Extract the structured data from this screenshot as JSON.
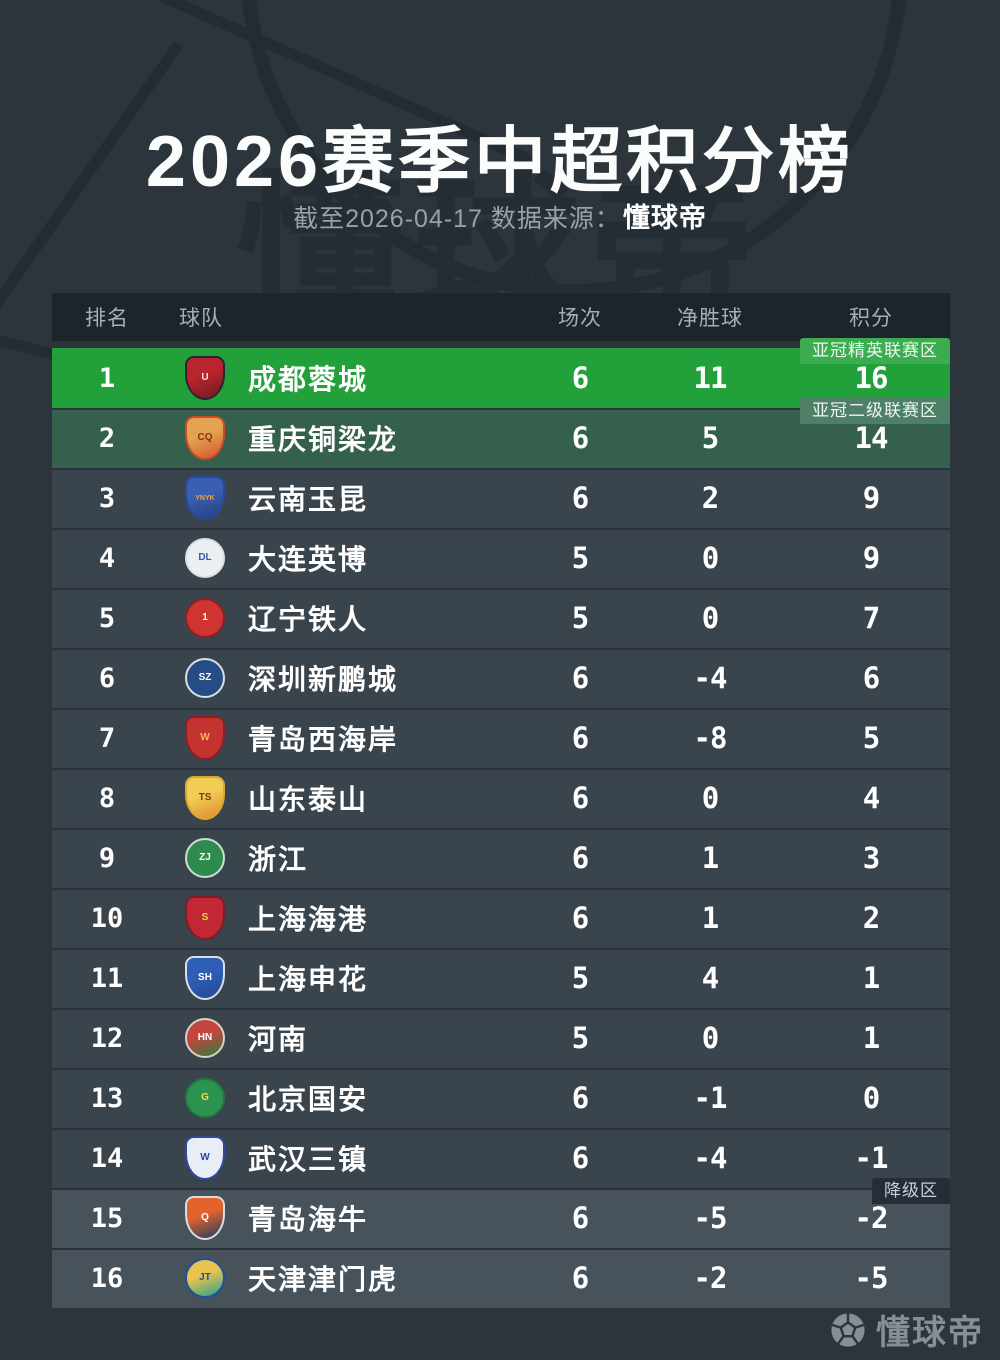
{
  "page": {
    "title": "2026赛季中超积分榜",
    "subtitle_prefix": "截至2026-04-17 数据来源：",
    "subtitle_brand": "懂球帝",
    "watermark": "懂球帝",
    "footer_brand": "懂球帝"
  },
  "colors": {
    "page_bg": "#2b353b",
    "header_bg": "#1c252b",
    "row_default": "#3a444d",
    "row_acl_elite": "#22a13a",
    "row_acl_two": "#35604b",
    "row_relegation": "#47525b",
    "badge_acl_elite": "#3bac50",
    "badge_acl_two": "#4e8067",
    "badge_relegation": "#252e38"
  },
  "table": {
    "columns": [
      "排名",
      "球队",
      "场次",
      "净胜球",
      "积分"
    ],
    "rows": [
      {
        "rank": "1",
        "team": "成都蓉城",
        "played": "6",
        "gd": "11",
        "points": "16",
        "zone": "acl_elite",
        "badge": "亚冠精英联赛区",
        "logo": {
          "shape": "shield",
          "c1": "#2a2433",
          "c2": "#b9252c",
          "c4": "#701a20",
          "c3": "#f1e9e9",
          "text": "U"
        }
      },
      {
        "rank": "2",
        "team": "重庆铜梁龙",
        "played": "6",
        "gd": "5",
        "points": "14",
        "zone": "acl_two",
        "badge": "亚冠二级联赛区",
        "logo": {
          "shape": "shield",
          "c1": "#cc4a28",
          "c2": "#e2a452",
          "c4": "#d4552e",
          "c3": "#8d2c14",
          "text": "CQ"
        }
      },
      {
        "rank": "3",
        "team": "云南玉昆",
        "played": "6",
        "gd": "2",
        "points": "9",
        "zone": "none",
        "badge": "",
        "logo": {
          "shape": "shield",
          "c1": "#274a9a",
          "c2": "#3a5fb0",
          "c4": "#23407e",
          "c3": "#f0a23c",
          "text": "YNYK"
        }
      },
      {
        "rank": "4",
        "team": "大连英博",
        "played": "5",
        "gd": "0",
        "points": "9",
        "zone": "none",
        "badge": "",
        "logo": {
          "shape": "circle",
          "c1": "#d9dfe5",
          "c2": "#edf0f3",
          "c4": "",
          "c3": "#2b5cab",
          "text": "DL"
        }
      },
      {
        "rank": "5",
        "team": "辽宁铁人",
        "played": "5",
        "gd": "0",
        "points": "7",
        "zone": "none",
        "badge": "",
        "logo": {
          "shape": "circle",
          "c1": "#8e1f24",
          "c2": "#cf3530",
          "c4": "",
          "c3": "#ffffff",
          "text": "1"
        }
      },
      {
        "rank": "6",
        "team": "深圳新鹏城",
        "played": "6",
        "gd": "-4",
        "points": "6",
        "zone": "none",
        "badge": "",
        "logo": {
          "shape": "circle",
          "c1": "#d8e0e8",
          "c2": "#254c84",
          "c4": "",
          "c3": "#ffffff",
          "text": "SZ"
        }
      },
      {
        "rank": "7",
        "team": "青岛西海岸",
        "played": "6",
        "gd": "-8",
        "points": "5",
        "zone": "none",
        "badge": "",
        "logo": {
          "shape": "shield",
          "c1": "#8f1f26",
          "c2": "#c43330",
          "c4": "",
          "c3": "#f0c24a",
          "text": "W"
        }
      },
      {
        "rank": "8",
        "team": "山东泰山",
        "played": "6",
        "gd": "0",
        "points": "4",
        "zone": "none",
        "badge": "",
        "logo": {
          "shape": "shield",
          "c1": "#d8a92e",
          "c2": "#f0ce55",
          "c4": "#e2862e",
          "c3": "#7c3416",
          "text": "TS"
        }
      },
      {
        "rank": "9",
        "team": "浙江",
        "played": "6",
        "gd": "1",
        "points": "3",
        "zone": "none",
        "badge": "",
        "logo": {
          "shape": "circle",
          "c1": "#cfe0d2",
          "c2": "#2f8a4e",
          "c4": "",
          "c3": "#ffffff",
          "text": "ZJ"
        }
      },
      {
        "rank": "10",
        "team": "上海海港",
        "played": "6",
        "gd": "1",
        "points": "2",
        "zone": "none",
        "badge": "",
        "logo": {
          "shape": "shield",
          "c1": "#7e1d26",
          "c2": "#c22833",
          "c4": "",
          "c3": "#f4d14f",
          "text": "S"
        }
      },
      {
        "rank": "11",
        "team": "上海申花",
        "played": "5",
        "gd": "4",
        "points": "1",
        "zone": "none",
        "badge": "",
        "logo": {
          "shape": "shield",
          "c1": "#d8dfe8",
          "c2": "#2f5fb5",
          "c4": "#24479a",
          "c3": "#ffffff",
          "text": "SH"
        }
      },
      {
        "rank": "12",
        "team": "河南",
        "played": "5",
        "gd": "0",
        "points": "1",
        "zone": "none",
        "badge": "",
        "logo": {
          "shape": "circle",
          "c1": "#d8d2c8",
          "c2": "#c2453e",
          "c4": "#2f7d3e",
          "c3": "#ffffff",
          "text": "HN"
        }
      },
      {
        "rank": "13",
        "team": "北京国安",
        "played": "6",
        "gd": "-1",
        "points": "0",
        "zone": "none",
        "badge": "",
        "logo": {
          "shape": "circle",
          "c1": "#1f7a40",
          "c2": "#2a9350",
          "c4": "",
          "c3": "#ffd84d",
          "text": "G"
        }
      },
      {
        "rank": "14",
        "team": "武汉三镇",
        "played": "6",
        "gd": "-4",
        "points": "-1",
        "zone": "none",
        "badge": "",
        "logo": {
          "shape": "shield",
          "c1": "#2b4aa0",
          "c2": "#e9edf5",
          "c4": "",
          "c3": "#2b4aa0",
          "text": "W"
        }
      },
      {
        "rank": "15",
        "team": "青岛海牛",
        "played": "6",
        "gd": "-5",
        "points": "-2",
        "zone": "releg",
        "badge": "降级区",
        "logo": {
          "shape": "shield",
          "c1": "#d8dde2",
          "c2": "#e2622b",
          "c4": "#1e3a66",
          "c3": "#ffffff",
          "text": "Q"
        }
      },
      {
        "rank": "16",
        "team": "天津津门虎",
        "played": "6",
        "gd": "-2",
        "points": "-5",
        "zone": "releg",
        "badge": "",
        "logo": {
          "shape": "circle",
          "c1": "#1f4fa0",
          "c2": "#e8c44e",
          "c4": "#2a9f8f",
          "c3": "#1f4fa0",
          "text": "JT"
        }
      }
    ]
  }
}
